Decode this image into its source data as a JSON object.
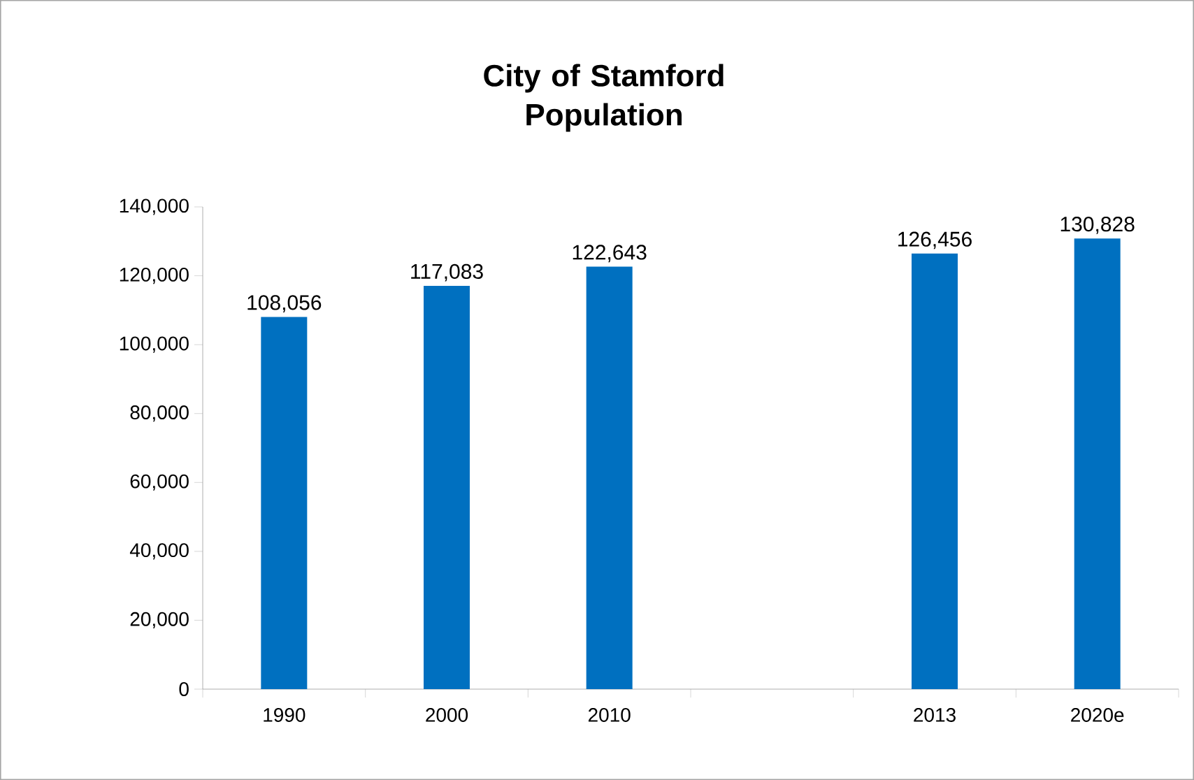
{
  "chart_data": {
    "type": "bar",
    "title": "City of Stamford Population",
    "categories": [
      "1990",
      "2000",
      "2010",
      null,
      "2013",
      "2020e"
    ],
    "values": [
      108056,
      117083,
      122643,
      null,
      126456,
      130828
    ],
    "value_labels": [
      "108,056",
      "117,083",
      "122,643",
      null,
      "126,456",
      "130,828"
    ],
    "color": "#0070c0",
    "ylim": [
      0,
      140000
    ],
    "yticks": [
      {
        "value": 0,
        "label": "0"
      },
      {
        "value": 20000,
        "label": "20,000"
      },
      {
        "value": 40000,
        "label": "40,000"
      },
      {
        "value": 60000,
        "label": "60,000"
      },
      {
        "value": 80000,
        "label": "80,000"
      },
      {
        "value": 100000,
        "label": "100,000"
      },
      {
        "value": 120000,
        "label": "120,000"
      },
      {
        "value": 140000,
        "label": "140,000"
      }
    ]
  }
}
